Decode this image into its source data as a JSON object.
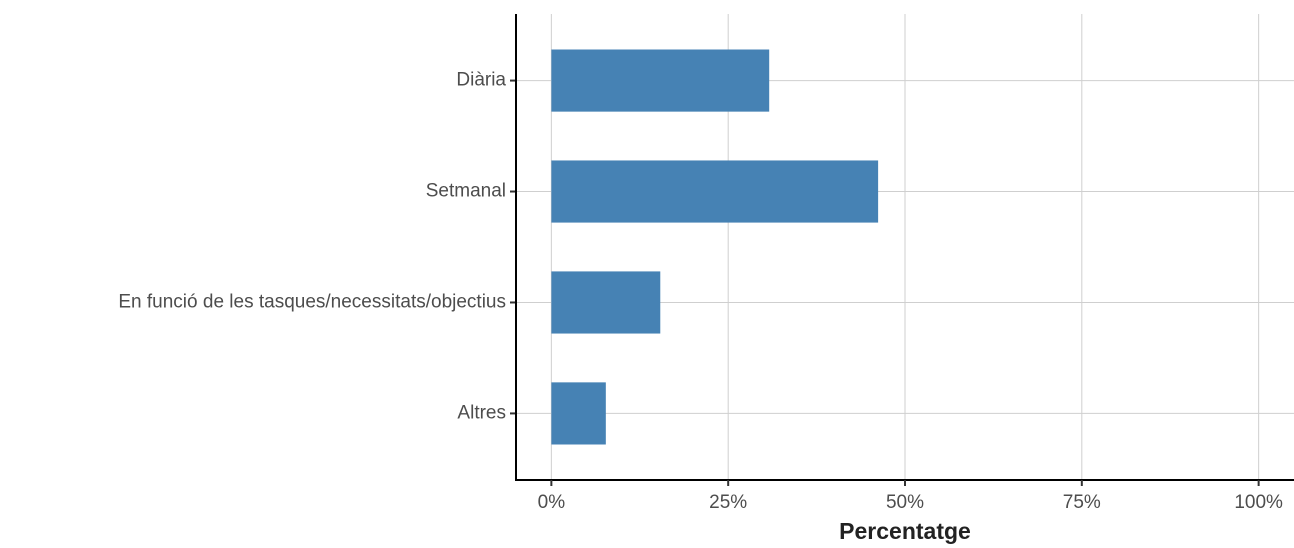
{
  "chart_data": {
    "type": "bar",
    "orientation": "horizontal",
    "x_label": "Percentatge",
    "categories": [
      "Diària",
      "Setmanal",
      "En funció de les tasques/necessitats/objectius",
      "Altres"
    ],
    "values": [
      30.8,
      46.2,
      15.4,
      7.7
    ],
    "color": "#4682b4",
    "xlim": [
      -5,
      105
    ],
    "xticks": [
      {
        "value": 0,
        "label": "0%"
      },
      {
        "value": 25,
        "label": "25%"
      },
      {
        "value": 50,
        "label": "50%"
      },
      {
        "value": 75,
        "label": "75%"
      },
      {
        "value": 100,
        "label": "100%"
      }
    ],
    "grid": true
  }
}
